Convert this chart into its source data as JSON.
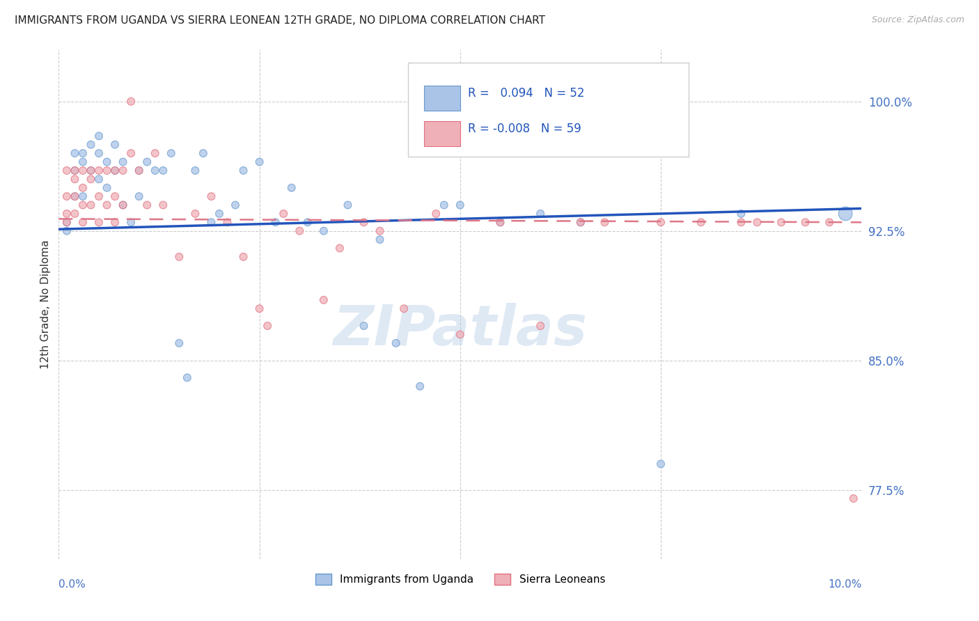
{
  "title": "IMMIGRANTS FROM UGANDA VS SIERRA LEONEAN 12TH GRADE, NO DIPLOMA CORRELATION CHART",
  "source": "Source: ZipAtlas.com",
  "ylabel": "12th Grade, No Diploma",
  "yticks": [
    0.775,
    0.85,
    0.925,
    1.0
  ],
  "ytick_labels": [
    "77.5%",
    "85.0%",
    "92.5%",
    "100.0%"
  ],
  "xlim": [
    0.0,
    0.1
  ],
  "ylim": [
    0.735,
    1.03
  ],
  "legend_label1": "Immigrants from Uganda",
  "legend_label2": "Sierra Leoneans",
  "watermark": "ZIPatlas",
  "color_uganda": "#aac4e8",
  "color_sierra": "#f0b0b8",
  "color_uganda_edge": "#6699cc",
  "color_sierra_edge": "#e07080",
  "color_trend_uganda": "#2255bb",
  "color_trend_sierra": "#dd7788",
  "r_uganda": 0.094,
  "n_uganda": 52,
  "r_sierra": -0.008,
  "n_sierra": 59,
  "uganda_x": [
    0.001,
    0.001,
    0.002,
    0.002,
    0.002,
    0.003,
    0.003,
    0.003,
    0.004,
    0.004,
    0.005,
    0.005,
    0.005,
    0.006,
    0.006,
    0.007,
    0.007,
    0.008,
    0.008,
    0.009,
    0.01,
    0.01,
    0.011,
    0.012,
    0.013,
    0.014,
    0.015,
    0.016,
    0.017,
    0.018,
    0.019,
    0.02,
    0.022,
    0.023,
    0.025,
    0.027,
    0.029,
    0.031,
    0.033,
    0.036,
    0.038,
    0.04,
    0.042,
    0.045,
    0.048,
    0.05,
    0.055,
    0.06,
    0.065,
    0.075,
    0.085,
    0.098
  ],
  "uganda_y": [
    0.925,
    0.93,
    0.97,
    0.96,
    0.945,
    0.97,
    0.965,
    0.945,
    0.975,
    0.96,
    0.98,
    0.97,
    0.955,
    0.965,
    0.95,
    0.975,
    0.96,
    0.965,
    0.94,
    0.93,
    0.96,
    0.945,
    0.965,
    0.96,
    0.96,
    0.97,
    0.86,
    0.84,
    0.96,
    0.97,
    0.93,
    0.935,
    0.94,
    0.96,
    0.965,
    0.93,
    0.95,
    0.93,
    0.925,
    0.94,
    0.87,
    0.92,
    0.86,
    0.835,
    0.94,
    0.94,
    0.93,
    0.935,
    0.93,
    0.79,
    0.935,
    0.935
  ],
  "uganda_sizes": [
    60,
    60,
    60,
    60,
    60,
    60,
    60,
    60,
    60,
    60,
    60,
    60,
    60,
    60,
    60,
    60,
    60,
    60,
    60,
    60,
    60,
    60,
    60,
    60,
    60,
    60,
    60,
    60,
    60,
    60,
    60,
    60,
    60,
    60,
    60,
    60,
    60,
    60,
    60,
    60,
    60,
    60,
    60,
    60,
    60,
    60,
    60,
    60,
    60,
    60,
    60,
    200
  ],
  "sierra_x": [
    0.001,
    0.001,
    0.001,
    0.001,
    0.002,
    0.002,
    0.002,
    0.002,
    0.003,
    0.003,
    0.003,
    0.003,
    0.004,
    0.004,
    0.004,
    0.005,
    0.005,
    0.005,
    0.006,
    0.006,
    0.007,
    0.007,
    0.007,
    0.008,
    0.008,
    0.009,
    0.009,
    0.01,
    0.011,
    0.012,
    0.013,
    0.015,
    0.017,
    0.019,
    0.021,
    0.023,
    0.025,
    0.026,
    0.028,
    0.03,
    0.033,
    0.035,
    0.038,
    0.04,
    0.043,
    0.047,
    0.05,
    0.055,
    0.06,
    0.065,
    0.068,
    0.075,
    0.08,
    0.085,
    0.087,
    0.09,
    0.093,
    0.096,
    0.099
  ],
  "sierra_y": [
    0.935,
    0.93,
    0.945,
    0.96,
    0.955,
    0.935,
    0.945,
    0.96,
    0.94,
    0.95,
    0.93,
    0.96,
    0.955,
    0.94,
    0.96,
    0.945,
    0.93,
    0.96,
    0.96,
    0.94,
    0.96,
    0.945,
    0.93,
    0.96,
    0.94,
    0.97,
    1.0,
    0.96,
    0.94,
    0.97,
    0.94,
    0.91,
    0.935,
    0.945,
    0.93,
    0.91,
    0.88,
    0.87,
    0.935,
    0.925,
    0.885,
    0.915,
    0.93,
    0.925,
    0.88,
    0.935,
    0.865,
    0.93,
    0.87,
    0.93,
    0.93,
    0.93,
    0.93,
    0.93,
    0.93,
    0.93,
    0.93,
    0.93,
    0.77
  ],
  "sierra_sizes": [
    60,
    60,
    60,
    60,
    60,
    60,
    60,
    60,
    60,
    60,
    60,
    60,
    60,
    60,
    60,
    60,
    60,
    60,
    60,
    60,
    60,
    60,
    60,
    60,
    60,
    60,
    60,
    60,
    60,
    60,
    60,
    60,
    60,
    60,
    60,
    60,
    60,
    60,
    60,
    60,
    60,
    60,
    60,
    60,
    60,
    60,
    60,
    60,
    60,
    60,
    60,
    60,
    60,
    60,
    60,
    60,
    60,
    60,
    60
  ]
}
